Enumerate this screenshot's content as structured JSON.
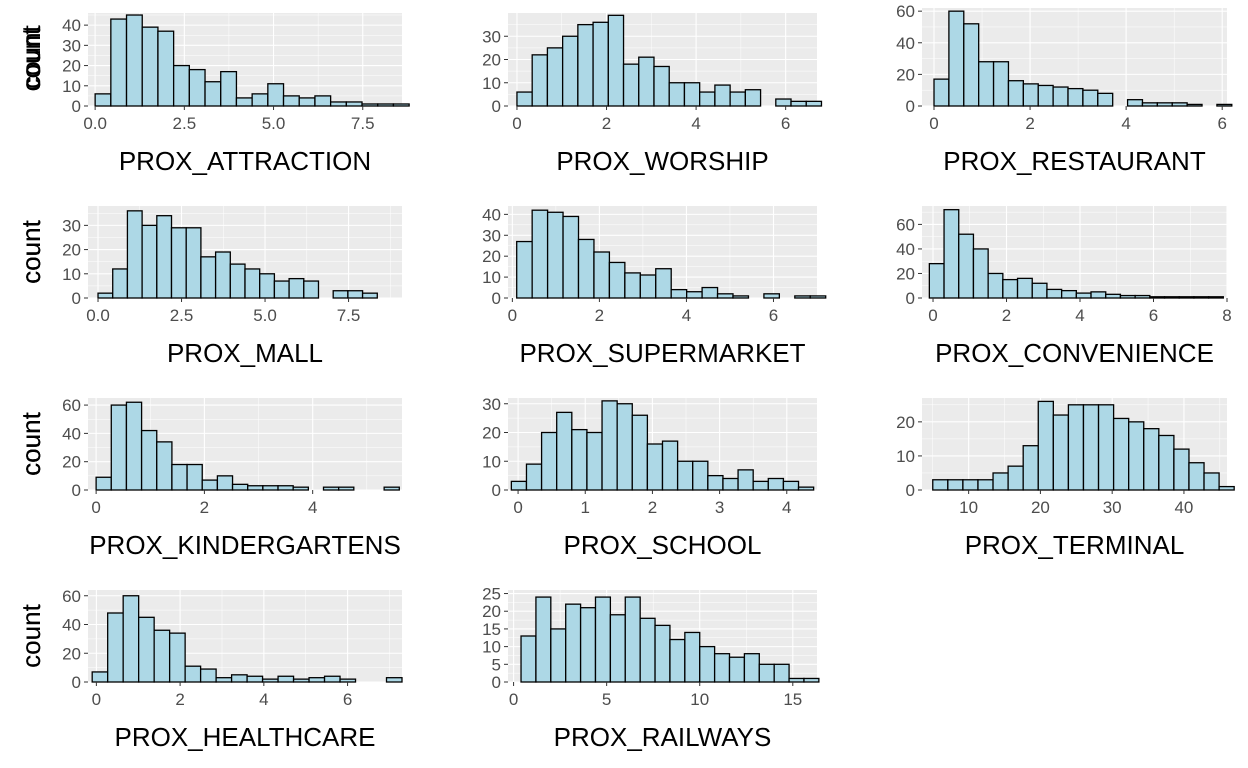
{
  "chart_data": [
    {
      "type": "bar",
      "xlabel": "PROX_ATTRACTION",
      "ylabel": "count",
      "xlim": [
        -0.2,
        8.6
      ],
      "ylim": [
        0,
        46
      ],
      "xticks": [
        0,
        2.5,
        5,
        7.5
      ],
      "xtick_labels": [
        "0.0",
        "2.5",
        "5.0",
        "7.5"
      ],
      "yticks": [
        0,
        10,
        20,
        30,
        40
      ],
      "ytick_labels": [
        "0",
        "10",
        "20",
        "30",
        "40"
      ],
      "bin_start": 0,
      "bin_width": 0.44,
      "values": [
        6,
        43,
        45,
        39,
        37,
        20,
        18,
        12,
        17,
        4,
        6,
        11,
        5,
        4,
        5,
        2,
        2,
        1,
        1,
        1
      ]
    },
    {
      "type": "bar",
      "xlabel": "PROX_WORSHIP",
      "ylabel": "count",
      "xlim": [
        -0.2,
        6.7
      ],
      "ylim": [
        0,
        40
      ],
      "xticks": [
        0,
        2,
        4,
        6
      ],
      "xtick_labels": [
        "0",
        "2",
        "4",
        "6"
      ],
      "yticks": [
        0,
        10,
        20,
        30
      ],
      "ytick_labels": [
        "0",
        "10",
        "20",
        "30"
      ],
      "bin_start": 0,
      "bin_width": 0.34,
      "values": [
        6,
        22,
        25,
        30,
        35,
        36,
        39,
        18,
        21,
        17,
        10,
        10,
        6,
        9,
        6,
        7,
        0,
        3,
        2,
        2
      ]
    },
    {
      "type": "bar",
      "xlabel": "PROX_RESTAURANT",
      "ylabel": "count",
      "xlim": [
        -0.25,
        6.1
      ],
      "ylim": [
        0,
        62
      ],
      "xticks": [
        0,
        2,
        4,
        6
      ],
      "xtick_labels": [
        "0",
        "2",
        "4",
        "6"
      ],
      "yticks": [
        0,
        20,
        40,
        60
      ],
      "ytick_labels": [
        "0",
        "20",
        "40",
        "60"
      ],
      "bin_start": 0,
      "bin_width": 0.31,
      "values": [
        17,
        60,
        52,
        28,
        28,
        16,
        14,
        13,
        12,
        11,
        10,
        8,
        0,
        4,
        2,
        2,
        2,
        1,
        0,
        1
      ]
    },
    {
      "type": "bar",
      "xlabel": "PROX_MALL",
      "ylabel": "count",
      "xlim": [
        -0.3,
        9.1
      ],
      "ylim": [
        0,
        38
      ],
      "xticks": [
        0,
        2.5,
        5,
        7.5
      ],
      "xtick_labels": [
        "0.0",
        "2.5",
        "5.0",
        "7.5"
      ],
      "yticks": [
        0,
        10,
        20,
        30
      ],
      "ytick_labels": [
        "0",
        "10",
        "20",
        "30"
      ],
      "bin_start": 0,
      "bin_width": 0.44,
      "values": [
        2,
        12,
        36,
        30,
        34,
        29,
        29,
        17,
        19,
        14,
        12,
        10,
        7,
        8,
        7,
        0,
        3,
        3,
        2,
        0
      ]
    },
    {
      "type": "bar",
      "xlabel": "PROX_SUPERMARKET",
      "ylabel": "count",
      "xlim": [
        -0.1,
        7.0
      ],
      "ylim": [
        0,
        44
      ],
      "xticks": [
        0,
        2,
        4,
        6
      ],
      "xtick_labels": [
        "0",
        "2",
        "4",
        "6"
      ],
      "yticks": [
        0,
        10,
        20,
        30,
        40
      ],
      "ytick_labels": [
        "0",
        "10",
        "20",
        "30",
        "40"
      ],
      "bin_start": 0.1,
      "bin_width": 0.355,
      "values": [
        27,
        42,
        41,
        39,
        28,
        22,
        17,
        12,
        11,
        14,
        4,
        3,
        5,
        2,
        1,
        0,
        2,
        0,
        1,
        1
      ]
    },
    {
      "type": "bar",
      "xlabel": "PROX_CONVENIENCE",
      "ylabel": "count",
      "xlim": [
        -0.3,
        8.0
      ],
      "ylim": [
        0,
        75
      ],
      "xticks": [
        0,
        2,
        4,
        6,
        8
      ],
      "xtick_labels": [
        "0",
        "2",
        "4",
        "6",
        "8"
      ],
      "yticks": [
        0,
        20,
        40,
        60
      ],
      "ytick_labels": [
        "0",
        "20",
        "40",
        "60"
      ],
      "bin_start": -0.1,
      "bin_width": 0.4,
      "values": [
        28,
        72,
        52,
        40,
        20,
        15,
        16,
        12,
        7,
        6,
        4,
        5,
        3,
        2,
        2,
        1,
        1,
        1,
        1,
        1
      ]
    },
    {
      "type": "bar",
      "xlabel": "PROX_KINDERGARTENS",
      "ylabel": "count",
      "xlim": [
        -0.15,
        5.65
      ],
      "ylim": [
        0,
        65
      ],
      "xticks": [
        0,
        2,
        4
      ],
      "xtick_labels": [
        "0",
        "2",
        "4"
      ],
      "yticks": [
        0,
        20,
        40,
        60
      ],
      "ytick_labels": [
        "0",
        "20",
        "40",
        "60"
      ],
      "bin_start": 0,
      "bin_width": 0.28,
      "values": [
        9,
        60,
        62,
        42,
        34,
        18,
        18,
        7,
        10,
        4,
        3,
        3,
        3,
        2,
        0,
        2,
        2,
        0,
        0,
        2
      ]
    },
    {
      "type": "bar",
      "xlabel": "PROX_SCHOOL",
      "ylabel": "count",
      "xlim": [
        -0.15,
        4.45
      ],
      "ylim": [
        0,
        32
      ],
      "xticks": [
        0,
        1,
        2,
        3,
        4
      ],
      "xtick_labels": [
        "0",
        "1",
        "2",
        "3",
        "4"
      ],
      "yticks": [
        0,
        10,
        20,
        30
      ],
      "ytick_labels": [
        "0",
        "10",
        "20",
        "30"
      ],
      "bin_start": -0.1,
      "bin_width": 0.225,
      "values": [
        3,
        9,
        20,
        27,
        21,
        20,
        31,
        30,
        26,
        16,
        17,
        10,
        10,
        5,
        4,
        7,
        3,
        4,
        3,
        1
      ]
    },
    {
      "type": "bar",
      "xlabel": "PROX_TERMINAL",
      "ylabel": "count",
      "xlim": [
        3.5,
        46
      ],
      "ylim": [
        0,
        27
      ],
      "xticks": [
        10,
        20,
        30,
        40
      ],
      "xtick_labels": [
        "10",
        "20",
        "30",
        "40"
      ],
      "yticks": [
        0,
        10,
        20
      ],
      "ytick_labels": [
        "0",
        "10",
        "20"
      ],
      "bin_start": 5,
      "bin_width": 2.1,
      "values": [
        3,
        3,
        3,
        3,
        5,
        7,
        13,
        26,
        22,
        25,
        25,
        25,
        21,
        20,
        18,
        16,
        12,
        8,
        5,
        1
      ]
    },
    {
      "type": "bar",
      "xlabel": "PROX_HEALTHCARE",
      "ylabel": "count",
      "xlim": [
        -0.2,
        7.3
      ],
      "ylim": [
        0,
        64
      ],
      "xticks": [
        0,
        2,
        4,
        6
      ],
      "xtick_labels": [
        "0",
        "2",
        "4",
        "6"
      ],
      "yticks": [
        0,
        20,
        40,
        60
      ],
      "ytick_labels": [
        "0",
        "20",
        "40",
        "60"
      ],
      "bin_start": -0.1,
      "bin_width": 0.37,
      "values": [
        7,
        48,
        60,
        45,
        36,
        34,
        11,
        9,
        3,
        5,
        4,
        2,
        4,
        2,
        3,
        4,
        2,
        0,
        0,
        3
      ]
    },
    {
      "type": "bar",
      "xlabel": "PROX_RAILWAYS",
      "ylabel": "count",
      "xlim": [
        -0.3,
        16.3
      ],
      "ylim": [
        0,
        26
      ],
      "xticks": [
        0,
        5,
        10,
        15
      ],
      "xtick_labels": [
        "0",
        "5",
        "10",
        "15"
      ],
      "yticks": [
        0,
        5,
        10,
        15,
        20,
        25
      ],
      "ytick_labels": [
        "0",
        "5",
        "10",
        "15",
        "20",
        "25"
      ],
      "bin_start": 0.4,
      "bin_width": 0.8,
      "values": [
        13,
        24,
        15,
        22,
        21,
        24,
        19,
        24,
        18,
        16,
        12,
        14,
        10,
        8,
        7,
        8,
        5,
        5,
        1,
        1
      ]
    }
  ]
}
